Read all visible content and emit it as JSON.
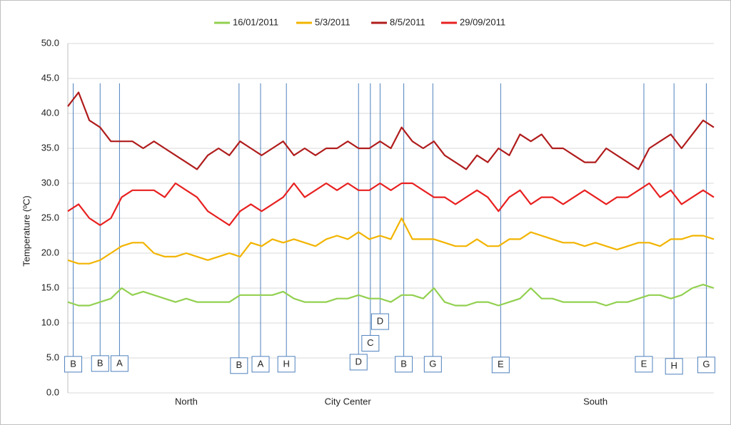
{
  "chart_data": {
    "type": "line",
    "y_label": "Temperature (ºC)",
    "categories": [
      null,
      null,
      null,
      null,
      null,
      null,
      null,
      null,
      null,
      null,
      null,
      "North",
      null,
      null,
      null,
      null,
      null,
      null,
      null,
      null,
      null,
      null,
      null,
      null,
      null,
      null,
      "City Center",
      null,
      null,
      null,
      null,
      null,
      null,
      null,
      null,
      null,
      null,
      null,
      null,
      null,
      null,
      null,
      null,
      null,
      null,
      null,
      null,
      null,
      null,
      "South",
      null,
      null,
      null,
      null,
      null,
      null,
      null,
      null,
      null,
      null,
      null
    ],
    "series": [
      {
        "name": "16/01/2011",
        "color": "#92d050",
        "values": [
          13,
          12.5,
          12.5,
          13,
          13.5,
          15,
          14,
          14.5,
          14,
          13.5,
          13,
          13.5,
          13,
          13,
          13,
          13,
          14,
          14,
          14,
          14,
          14.5,
          13.5,
          13,
          13,
          13,
          13.5,
          13.5,
          14,
          13.5,
          13.5,
          13,
          14,
          14,
          13.5,
          15,
          13,
          12.5,
          12.5,
          13,
          13,
          12.5,
          13,
          13.5,
          15,
          13.5,
          13.5,
          13,
          13,
          13,
          13,
          12.5,
          13,
          13,
          13.5,
          14,
          14,
          13.5,
          14,
          15,
          15.5,
          15
        ]
      },
      {
        "name": "5/3/2011",
        "color": "#f2b400",
        "values": [
          19,
          18.5,
          18.5,
          19,
          20,
          21,
          21.5,
          21.5,
          20,
          19.5,
          19.5,
          20,
          19.5,
          19,
          19.5,
          20,
          19.5,
          21.5,
          21,
          22,
          21.5,
          22,
          21.5,
          21,
          22,
          22.5,
          22,
          23,
          22,
          22.5,
          22,
          25,
          22,
          22,
          22,
          21.5,
          21,
          21,
          22,
          21,
          21,
          22,
          22,
          23,
          22.5,
          22,
          21.5,
          21.5,
          21,
          21.5,
          21,
          20.5,
          21,
          21.5,
          21.5,
          21,
          22,
          22,
          22.5,
          22.5,
          22
        ]
      },
      {
        "name": "8/5/2011",
        "color": "#b01c1c",
        "values": [
          41,
          43,
          39,
          38,
          36,
          36,
          36,
          35,
          36,
          35,
          34,
          33,
          32,
          34,
          35,
          34,
          36,
          35,
          34,
          35,
          36,
          34,
          35,
          34,
          35,
          35,
          36,
          35,
          35,
          36,
          35,
          38,
          36,
          35,
          36,
          34,
          33,
          32,
          34,
          33,
          35,
          34,
          37,
          36,
          37,
          35,
          35,
          34,
          33,
          33,
          35,
          34,
          33,
          32,
          35,
          36,
          37,
          35,
          37,
          39,
          38
        ]
      },
      {
        "name": "29/09/2011",
        "color": "#e82020",
        "values": [
          26,
          27,
          25,
          24,
          25,
          28,
          29,
          29,
          29,
          28,
          30,
          29,
          28,
          26,
          25,
          24,
          26,
          27,
          26,
          27,
          28,
          30,
          28,
          29,
          30,
          29,
          30,
          29,
          29,
          30,
          29,
          30,
          30,
          29,
          28,
          28,
          27,
          28,
          29,
          28,
          26,
          28,
          29,
          27,
          28,
          28,
          27,
          28,
          29,
          28,
          27,
          28,
          28,
          29,
          30,
          28,
          29,
          27,
          28,
          29,
          28
        ]
      }
    ],
    "annotations": [
      {
        "text": "B",
        "x": 0.5,
        "y": 4.1
      },
      {
        "text": "B",
        "x": 3,
        "y": 4.2
      },
      {
        "text": "A",
        "x": 4.8,
        "y": 4.2
      },
      {
        "text": "B",
        "x": 15.9,
        "y": 3.9
      },
      {
        "text": "A",
        "x": 17.9,
        "y": 4.1
      },
      {
        "text": "H",
        "x": 20.3,
        "y": 4.1
      },
      {
        "text": "D",
        "x": 27,
        "y": 4.4
      },
      {
        "text": "C",
        "x": 28.1,
        "y": 7.1
      },
      {
        "text": "D",
        "x": 29,
        "y": 10.2
      },
      {
        "text": "B",
        "x": 31.2,
        "y": 4.1
      },
      {
        "text": "G",
        "x": 33.9,
        "y": 4.1
      },
      {
        "text": "E",
        "x": 40.2,
        "y": 4
      },
      {
        "text": "E",
        "x": 53.5,
        "y": 4.1
      },
      {
        "text": "H",
        "x": 56.3,
        "y": 3.8
      },
      {
        "text": "G",
        "x": 59.3,
        "y": 4
      }
    ],
    "ylim": [
      0,
      50
    ],
    "yticks": [
      {
        "value": 0,
        "label": "0.0"
      },
      {
        "value": 5,
        "label": "5.0"
      },
      {
        "value": 10,
        "label": "10.0"
      },
      {
        "value": 15,
        "label": "15.0"
      },
      {
        "value": 20,
        "label": "20.0"
      },
      {
        "value": 25,
        "label": "25.0"
      },
      {
        "value": 30,
        "label": "30.0"
      },
      {
        "value": 35,
        "label": "35.0"
      },
      {
        "value": 40,
        "label": "40.0"
      },
      {
        "value": 45,
        "label": "45.0"
      },
      {
        "value": 50,
        "label": "50.0"
      }
    ],
    "grid": true
  }
}
